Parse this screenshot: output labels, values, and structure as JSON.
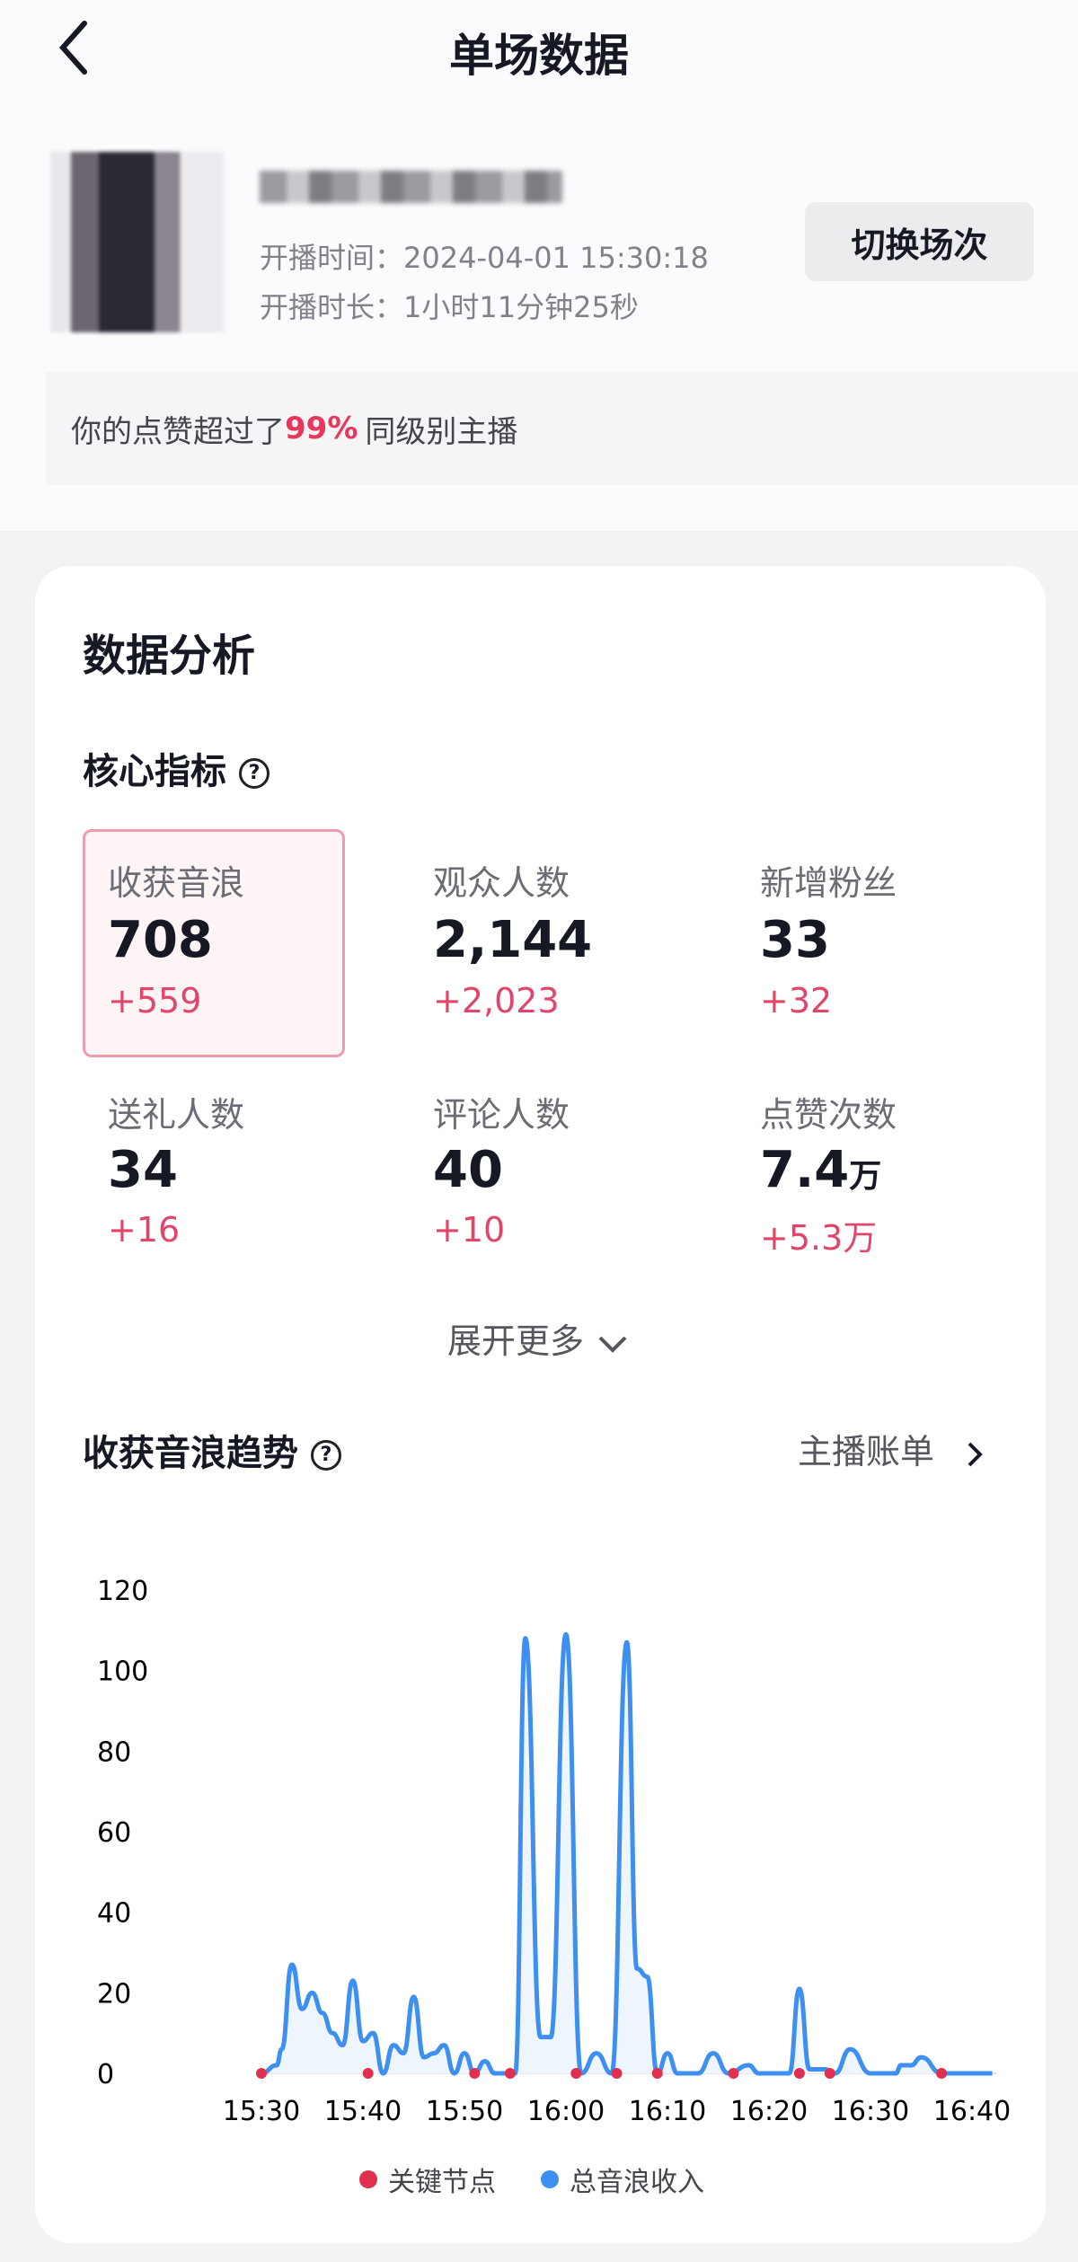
{
  "header": {
    "title": "单场数据",
    "back_icon": "chevron-left-icon"
  },
  "session": {
    "start_time_label": "开播时间：",
    "start_time": "2024-04-01 15:30:18",
    "duration_label": "开播时长：",
    "duration": "1小时11分钟25秒",
    "switch_button": "切换场次"
  },
  "banner": {
    "prefix": "你的点赞超过了",
    "highlight": "99%",
    "suffix": "同级别主播"
  },
  "analysis": {
    "title": "数据分析",
    "core_title": "核心指标",
    "metrics": [
      {
        "label": "收获音浪",
        "value": "708",
        "unit": "",
        "delta": "+559",
        "selected": true
      },
      {
        "label": "观众人数",
        "value": "2,144",
        "unit": "",
        "delta": "+2,023"
      },
      {
        "label": "新增粉丝",
        "value": "33",
        "unit": "",
        "delta": "+32"
      },
      {
        "label": "送礼人数",
        "value": "34",
        "unit": "",
        "delta": "+16"
      },
      {
        "label": "评论人数",
        "value": "40",
        "unit": "",
        "delta": "+10"
      },
      {
        "label": "点赞次数",
        "value": "7.4",
        "unit": "万",
        "delta": "+5.3万"
      }
    ],
    "expand": "展开更多",
    "trend_title": "收获音浪趋势",
    "bill_link": "主播账单"
  },
  "colors": {
    "accent": "#e8375a",
    "line": "#3d8ff0",
    "key_node": "#e0304f"
  },
  "chart_data": {
    "type": "line",
    "ylim": [
      0,
      120
    ],
    "yticks": [
      "0",
      "20",
      "40",
      "60",
      "80",
      "100",
      "120"
    ],
    "xticks": [
      "15:30",
      "15:40",
      "15:50",
      "16:00",
      "16:10",
      "16:20",
      "16:30",
      "16:40"
    ],
    "grid": false,
    "legend": "bottom",
    "series": [
      {
        "name": "总音浪收入",
        "color": "#3d8ff0",
        "points": [
          [
            "15:30:00",
            0
          ],
          [
            "15:31:30",
            2
          ],
          [
            "15:32:00",
            6
          ],
          [
            "15:33:00",
            27
          ],
          [
            "15:34:00",
            16
          ],
          [
            "15:35:00",
            20
          ],
          [
            "15:36:00",
            15
          ],
          [
            "15:37:00",
            10
          ],
          [
            "15:38:00",
            7
          ],
          [
            "15:39:00",
            23
          ],
          [
            "15:40:00",
            8
          ],
          [
            "15:41:00",
            10
          ],
          [
            "15:42:00",
            0
          ],
          [
            "15:43:00",
            7
          ],
          [
            "15:44:00",
            5
          ],
          [
            "15:45:00",
            19
          ],
          [
            "15:46:00",
            4
          ],
          [
            "15:47:00",
            5
          ],
          [
            "15:48:00",
            7
          ],
          [
            "15:49:00",
            0
          ],
          [
            "15:50:00",
            5
          ],
          [
            "15:51:00",
            0
          ],
          [
            "15:52:00",
            3
          ],
          [
            "15:53:00",
            0
          ],
          [
            "15:55:00",
            0
          ],
          [
            "15:56:00",
            108
          ],
          [
            "15:57:30",
            9
          ],
          [
            "15:58:30",
            9
          ],
          [
            "16:00:00",
            109
          ],
          [
            "16:01:30",
            0
          ],
          [
            "16:03:00",
            5
          ],
          [
            "16:04:30",
            0
          ],
          [
            "16:06:00",
            107
          ],
          [
            "16:07:00",
            26
          ],
          [
            "16:08:00",
            24
          ],
          [
            "16:09:00",
            0
          ],
          [
            "16:10:00",
            5
          ],
          [
            "16:11:00",
            0
          ],
          [
            "16:13:00",
            0
          ],
          [
            "16:14:30",
            5
          ],
          [
            "16:16:00",
            0
          ],
          [
            "16:18:00",
            2
          ],
          [
            "16:19:00",
            0
          ],
          [
            "16:22:00",
            0
          ],
          [
            "16:23:00",
            21
          ],
          [
            "16:24:00",
            1
          ],
          [
            "16:25:30",
            1
          ],
          [
            "16:26:30",
            0
          ],
          [
            "16:28:00",
            6
          ],
          [
            "16:30:00",
            0
          ],
          [
            "16:32:30",
            0
          ],
          [
            "16:33:00",
            2
          ],
          [
            "16:34:00",
            2
          ],
          [
            "16:35:00",
            4
          ],
          [
            "16:37:00",
            0
          ],
          [
            "16:42:00",
            0
          ]
        ]
      },
      {
        "name": "关键节点",
        "color": "#e0304f",
        "type": "scatter",
        "points": [
          [
            "15:30:00",
            0
          ],
          [
            "15:40:30",
            0
          ],
          [
            "15:51:00",
            0
          ],
          [
            "15:54:30",
            0
          ],
          [
            "16:01:00",
            0
          ],
          [
            "16:05:00",
            0
          ],
          [
            "16:09:00",
            0
          ],
          [
            "16:16:30",
            0
          ],
          [
            "16:23:00",
            0
          ],
          [
            "16:26:00",
            0
          ],
          [
            "16:37:00",
            0
          ]
        ]
      }
    ]
  }
}
